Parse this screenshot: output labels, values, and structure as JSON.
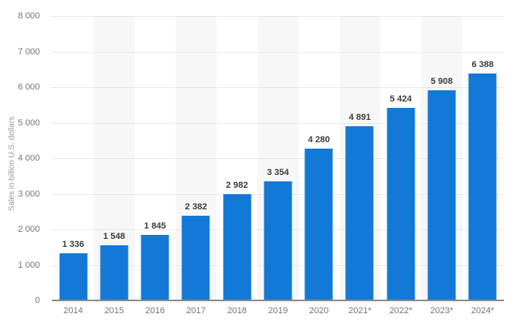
{
  "chart_data": {
    "type": "bar",
    "title": "",
    "xlabel": "",
    "ylabel": "Sales in billion U.S. dollars",
    "categories": [
      "2014",
      "2015",
      "2016",
      "2017",
      "2018",
      "2019",
      "2020",
      "2021*",
      "2022*",
      "2023*",
      "2024*"
    ],
    "values": [
      1336,
      1548,
      1845,
      2382,
      2982,
      3354,
      4280,
      4891,
      5424,
      5908,
      6388
    ],
    "value_labels": [
      "1 336",
      "1 548",
      "1 845",
      "2 382",
      "2 982",
      "3 354",
      "4 280",
      "4 891",
      "5 424",
      "5 908",
      "6 388"
    ],
    "ylim": [
      0,
      8000
    ],
    "ytick_values": [
      8000,
      7000,
      6000,
      5000,
      4000,
      3000,
      2000,
      1000,
      0
    ],
    "ytick_labels": [
      "8 000",
      "7 000",
      "6 000",
      "5 000",
      "4 000",
      "3 000",
      "2 000",
      "1 000",
      "0"
    ],
    "legend": "none",
    "grid": "horizontal-dotted",
    "band_pattern": "alternating light gray behind odd columns",
    "colors": {
      "bar": "#127ad6",
      "band": "#f7f7f7",
      "grid": "#d6d6d6",
      "axis_line": "#8c8c8c",
      "tick_text": "#757575",
      "value_text": "#3c3c3c",
      "ylabel_text": "#9a9a9a",
      "background": "#ffffff"
    }
  }
}
